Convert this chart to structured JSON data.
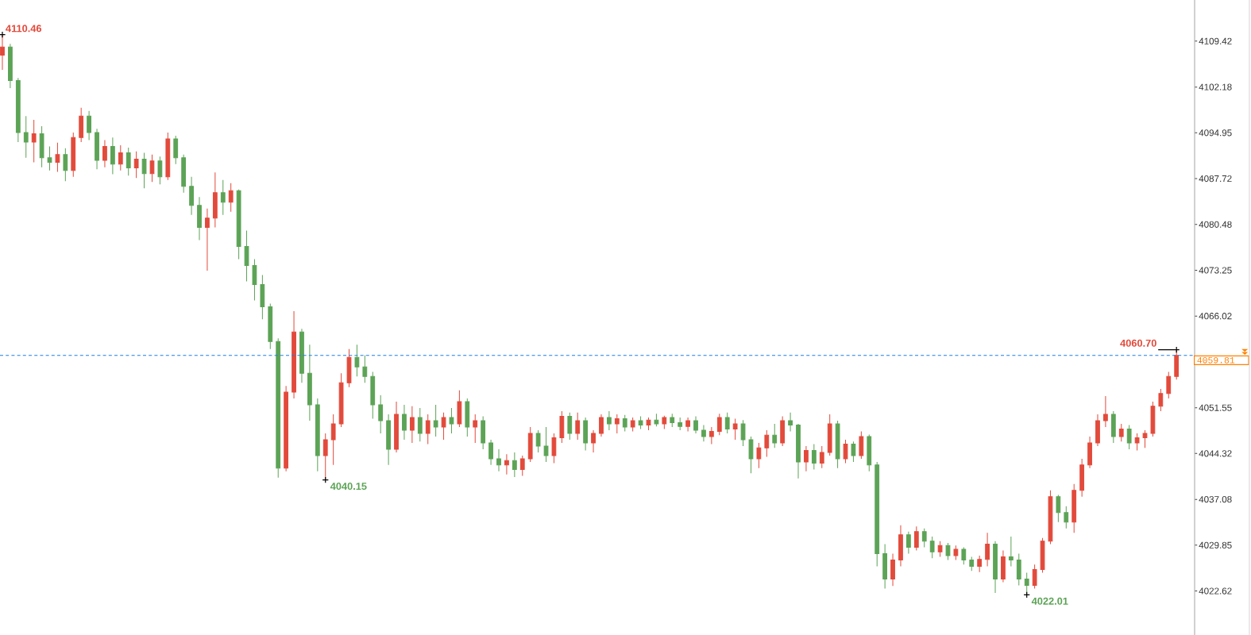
{
  "chart_data": {
    "type": "candlestick",
    "categories": [
      null,
      null,
      null,
      null,
      null,
      null,
      null,
      null,
      null,
      null,
      null,
      null,
      null,
      null,
      null,
      null,
      null,
      null,
      null,
      null,
      null,
      null,
      null,
      null,
      null,
      null,
      null,
      null,
      null,
      null,
      null,
      null,
      null,
      null,
      null,
      null,
      null,
      null,
      null,
      null,
      null,
      null,
      null,
      null,
      null,
      null,
      null,
      null,
      null,
      null,
      null,
      null,
      null,
      null,
      null,
      null,
      null,
      null,
      null,
      null,
      null,
      null,
      null,
      null,
      null,
      null,
      null,
      null,
      null,
      null,
      null,
      null,
      null,
      null,
      null,
      null,
      null,
      null,
      null,
      null,
      null,
      null,
      null,
      null,
      null,
      null,
      null,
      null,
      null,
      null,
      null,
      null,
      null,
      null,
      null,
      null,
      null,
      null,
      null,
      null,
      null,
      null,
      null,
      null,
      null,
      null,
      null,
      null,
      null,
      null,
      null,
      null,
      null,
      null,
      null,
      null,
      null,
      null,
      null,
      null,
      null,
      null,
      null,
      null,
      null,
      null,
      null,
      null,
      null,
      null,
      null,
      null,
      null,
      null,
      null,
      null,
      null,
      null,
      null,
      null,
      null,
      null,
      null,
      null,
      null,
      null,
      null,
      null,
      null,
      null
    ],
    "ohlc": [
      [
        4107.2,
        4110.46,
        4104.9,
        4108.5
      ],
      [
        4108.5,
        4109.0,
        4102.0,
        4103.2
      ],
      [
        4103.2,
        4103.6,
        4093.5,
        4095.0
      ],
      [
        4095.0,
        4097.6,
        4091.0,
        4093.5
      ],
      [
        4093.5,
        4097.0,
        4090.3,
        4094.8
      ],
      [
        4094.8,
        4096.0,
        4089.5,
        4091.0
      ],
      [
        4091.0,
        4092.8,
        4089.0,
        4090.3
      ],
      [
        4090.3,
        4093.4,
        4088.8,
        4091.5
      ],
      [
        4091.5,
        4092.5,
        4087.3,
        4089.0
      ],
      [
        4089.0,
        4095.0,
        4088.0,
        4094.2
      ],
      [
        4094.2,
        4098.9,
        4093.5,
        4097.6
      ],
      [
        4097.6,
        4098.4,
        4093.8,
        4095.0
      ],
      [
        4095.0,
        4095.6,
        4089.2,
        4090.6
      ],
      [
        4090.6,
        4093.8,
        4089.5,
        4092.8
      ],
      [
        4092.8,
        4094.2,
        4088.4,
        4090.0
      ],
      [
        4090.0,
        4093.0,
        4089.0,
        4091.8
      ],
      [
        4091.8,
        4092.6,
        4088.2,
        4089.4
      ],
      [
        4089.4,
        4092.0,
        4087.8,
        4090.8
      ],
      [
        4090.8,
        4091.8,
        4086.2,
        4088.5
      ],
      [
        4088.5,
        4091.5,
        4087.2,
        4090.5
      ],
      [
        4090.5,
        4091.2,
        4086.8,
        4088.0
      ],
      [
        4088.0,
        4095.0,
        4087.5,
        4094.0
      ],
      [
        4094.0,
        4094.5,
        4090.0,
        4091.0
      ],
      [
        4091.0,
        4091.5,
        4085.5,
        4086.5
      ],
      [
        4086.5,
        4088.0,
        4082.0,
        4083.5
      ],
      [
        4083.5,
        4084.8,
        4078.0,
        4080.0
      ],
      [
        4080.0,
        4083.0,
        4073.2,
        4081.5
      ],
      [
        4081.5,
        4088.7,
        4080.0,
        4085.5
      ],
      [
        4085.5,
        4087.5,
        4082.0,
        4084.0
      ],
      [
        4084.0,
        4087.0,
        4082.5,
        4085.8
      ],
      [
        4085.8,
        4086.0,
        4075.0,
        4077.0
      ],
      [
        4077.0,
        4079.5,
        4071.5,
        4074.0
      ],
      [
        4074.0,
        4075.0,
        4068.5,
        4071.0
      ],
      [
        4071.0,
        4072.5,
        4065.5,
        4067.5
      ],
      [
        4067.5,
        4068.0,
        4060.8,
        4062.0
      ],
      [
        4062.0,
        4062.5,
        4040.5,
        4042.0
      ],
      [
        4042.0,
        4055.0,
        4041.5,
        4054.0
      ],
      [
        4054.0,
        4066.8,
        4053.0,
        4063.5
      ],
      [
        4063.5,
        4064.0,
        4055.5,
        4057.0
      ],
      [
        4057.0,
        4061.5,
        4049.5,
        4052.0
      ],
      [
        4052.0,
        4053.0,
        4041.5,
        4044.0
      ],
      [
        4044.0,
        4047.5,
        4040.15,
        4046.5
      ],
      [
        4046.5,
        4050.5,
        4042.5,
        4049.0
      ],
      [
        4049.0,
        4057.0,
        4048.5,
        4055.5
      ],
      [
        4055.5,
        4060.8,
        4054.8,
        4059.5
      ],
      [
        4059.5,
        4061.5,
        4056.5,
        4058.0
      ],
      [
        4058.0,
        4059.8,
        4055.5,
        4056.5
      ],
      [
        4056.5,
        4057.2,
        4049.8,
        4052.0
      ],
      [
        4052.0,
        4053.5,
        4047.5,
        4049.5
      ],
      [
        4049.5,
        4050.5,
        4042.5,
        4045.0
      ],
      [
        4045.0,
        4052.5,
        4044.5,
        4050.5
      ],
      [
        4050.5,
        4052.0,
        4046.5,
        4048.0
      ],
      [
        4048.0,
        4051.8,
        4046.0,
        4050.0
      ],
      [
        4050.0,
        4051.5,
        4046.2,
        4047.5
      ],
      [
        4047.5,
        4050.5,
        4045.8,
        4049.5
      ],
      [
        4049.5,
        4052.0,
        4047.0,
        4048.5
      ],
      [
        4048.5,
        4050.8,
        4046.5,
        4050.0
      ],
      [
        4050.0,
        4051.5,
        4047.5,
        4049.0
      ],
      [
        4049.0,
        4054.3,
        4048.5,
        4052.5
      ],
      [
        4052.5,
        4053.0,
        4047.0,
        4048.5
      ],
      [
        4048.5,
        4050.5,
        4046.0,
        4049.5
      ],
      [
        4049.5,
        4050.2,
        4045.0,
        4046.0
      ],
      [
        4046.0,
        4046.5,
        4042.5,
        4043.5
      ],
      [
        4043.5,
        4045.0,
        4041.5,
        4042.5
      ],
      [
        4042.5,
        4044.2,
        4041.0,
        4043.2
      ],
      [
        4043.2,
        4044.5,
        4040.6,
        4041.8
      ],
      [
        4041.8,
        4044.0,
        4040.8,
        4043.5
      ],
      [
        4043.5,
        4048.5,
        4043.0,
        4047.5
      ],
      [
        4047.5,
        4048.0,
        4044.5,
        4045.5
      ],
      [
        4045.5,
        4048.5,
        4043.0,
        4044.0
      ],
      [
        4044.0,
        4047.5,
        4042.8,
        4046.8
      ],
      [
        4046.8,
        4051.0,
        4046.0,
        4050.2
      ],
      [
        4050.2,
        4050.8,
        4046.5,
        4047.5
      ],
      [
        4047.5,
        4050.8,
        4046.5,
        4049.5
      ],
      [
        4049.5,
        4050.0,
        4044.8,
        4046.0
      ],
      [
        4046.0,
        4048.0,
        4044.5,
        4047.5
      ],
      [
        4047.5,
        4050.5,
        4047.0,
        4050.0
      ],
      [
        4050.0,
        4051.0,
        4048.0,
        4049.0
      ],
      [
        4049.0,
        4050.5,
        4047.5,
        4049.8
      ],
      [
        4049.8,
        4050.4,
        4047.8,
        4048.5
      ],
      [
        4048.5,
        4050.0,
        4047.8,
        4049.5
      ],
      [
        4049.5,
        4050.2,
        4048.2,
        4048.8
      ],
      [
        4048.8,
        4050.0,
        4048.0,
        4049.6
      ],
      [
        4049.6,
        4050.6,
        4048.6,
        4049.0
      ],
      [
        4049.0,
        4050.3,
        4048.2,
        4050.0
      ],
      [
        4050.0,
        4050.6,
        4048.5,
        4049.2
      ],
      [
        4049.2,
        4050.0,
        4048.0,
        4048.6
      ],
      [
        4048.6,
        4050.0,
        4047.8,
        4049.5
      ],
      [
        4049.5,
        4050.2,
        4047.5,
        4048.0
      ],
      [
        4048.0,
        4048.8,
        4046.2,
        4047.0
      ],
      [
        4047.0,
        4048.5,
        4045.8,
        4047.8
      ],
      [
        4047.8,
        4050.6,
        4047.2,
        4050.0
      ],
      [
        4050.0,
        4050.8,
        4047.5,
        4048.2
      ],
      [
        4048.2,
        4049.8,
        4046.5,
        4049.0
      ],
      [
        4049.0,
        4049.6,
        4045.5,
        4046.5
      ],
      [
        4046.5,
        4047.0,
        4041.2,
        4043.5
      ],
      [
        4043.5,
        4046.0,
        4042.0,
        4045.2
      ],
      [
        4045.2,
        4048.0,
        4043.8,
        4047.2
      ],
      [
        4047.2,
        4049.0,
        4045.2,
        4046.0
      ],
      [
        4046.0,
        4050.2,
        4045.5,
        4049.5
      ],
      [
        4049.5,
        4050.8,
        4047.8,
        4048.8
      ],
      [
        4048.8,
        4049.0,
        4040.4,
        4043.0
      ],
      [
        4043.0,
        4045.5,
        4041.5,
        4044.8
      ],
      [
        4044.8,
        4045.8,
        4041.8,
        4042.8
      ],
      [
        4042.8,
        4045.5,
        4042.0,
        4044.5
      ],
      [
        4044.5,
        4050.5,
        4044.0,
        4049.0
      ],
      [
        4049.0,
        4049.5,
        4042.0,
        4043.5
      ],
      [
        4043.5,
        4046.5,
        4042.8,
        4045.8
      ],
      [
        4045.8,
        4046.2,
        4043.0,
        4044.0
      ],
      [
        4044.0,
        4047.8,
        4043.5,
        4047.0
      ],
      [
        4047.0,
        4047.3,
        4041.5,
        4042.5
      ],
      [
        4042.5,
        4043.0,
        4026.5,
        4028.5
      ],
      [
        4028.5,
        4030.0,
        4023.0,
        4024.5
      ],
      [
        4024.5,
        4028.5,
        4023.4,
        4027.5
      ],
      [
        4027.5,
        4033.0,
        4026.5,
        4031.5
      ],
      [
        4031.5,
        4032.0,
        4028.5,
        4029.5
      ],
      [
        4029.5,
        4032.8,
        4029.0,
        4032.0
      ],
      [
        4032.0,
        4032.5,
        4029.5,
        4030.5
      ],
      [
        4030.5,
        4031.2,
        4027.8,
        4028.8
      ],
      [
        4028.8,
        4030.5,
        4028.0,
        4029.8
      ],
      [
        4029.8,
        4030.2,
        4027.5,
        4028.2
      ],
      [
        4028.2,
        4029.8,
        4027.5,
        4029.2
      ],
      [
        4029.2,
        4029.5,
        4026.8,
        4027.5
      ],
      [
        4027.5,
        4028.0,
        4025.8,
        4026.5
      ],
      [
        4026.5,
        4028.2,
        4025.6,
        4027.6
      ],
      [
        4027.6,
        4031.8,
        4026.5,
        4030.0
      ],
      [
        4030.0,
        4030.5,
        4022.3,
        4024.5
      ],
      [
        4024.5,
        4029.0,
        4024.0,
        4028.0
      ],
      [
        4028.0,
        4031.2,
        4026.5,
        4027.5
      ],
      [
        4027.5,
        4028.5,
        4023.5,
        4024.5
      ],
      [
        4024.5,
        4025.5,
        4022.01,
        4023.5
      ],
      [
        4023.5,
        4026.8,
        4023.0,
        4026.0
      ],
      [
        4026.0,
        4031.0,
        4025.5,
        4030.5
      ],
      [
        4030.5,
        4038.5,
        4030.0,
        4037.5
      ],
      [
        4037.5,
        4037.8,
        4033.5,
        4035.0
      ],
      [
        4035.0,
        4036.0,
        4032.5,
        4033.5
      ],
      [
        4033.5,
        4039.5,
        4031.8,
        4038.5
      ],
      [
        4038.5,
        4043.5,
        4037.5,
        4042.5
      ],
      [
        4042.5,
        4047.0,
        4042.0,
        4046.0
      ],
      [
        4046.0,
        4050.5,
        4045.5,
        4049.5
      ],
      [
        4049.5,
        4053.4,
        4048.5,
        4050.5
      ],
      [
        4050.5,
        4051.0,
        4046.0,
        4047.0
      ],
      [
        4047.0,
        4049.0,
        4046.2,
        4048.2
      ],
      [
        4048.2,
        4048.8,
        4045.0,
        4046.0
      ],
      [
        4046.0,
        4047.5,
        4044.8,
        4046.8
      ],
      [
        4046.8,
        4048.0,
        4045.2,
        4047.5
      ],
      [
        4047.5,
        4052.5,
        4047.0,
        4051.8
      ],
      [
        4051.8,
        4054.5,
        4051.0,
        4053.8
      ],
      [
        4053.8,
        4057.2,
        4053.0,
        4056.5
      ],
      [
        4056.5,
        4060.7,
        4056.0,
        4059.81
      ]
    ],
    "ylim": [
      4015.67,
      4115.92
    ],
    "yticks": [
      4109.42,
      4102.18,
      4094.95,
      4087.72,
      4080.48,
      4073.25,
      4066.02,
      4051.55,
      4044.32,
      4037.08,
      4029.85,
      4022.62
    ],
    "ref_lines": [
      {
        "axis": "y",
        "value": 4059.81,
        "label": "4059.81",
        "color": "#1e7fe3",
        "line_style": "dashed"
      }
    ],
    "annotations": [
      "4110.46",
      "4040.15",
      "4022.01",
      "4060.70"
    ],
    "tick_labels": "y"
  }
}
